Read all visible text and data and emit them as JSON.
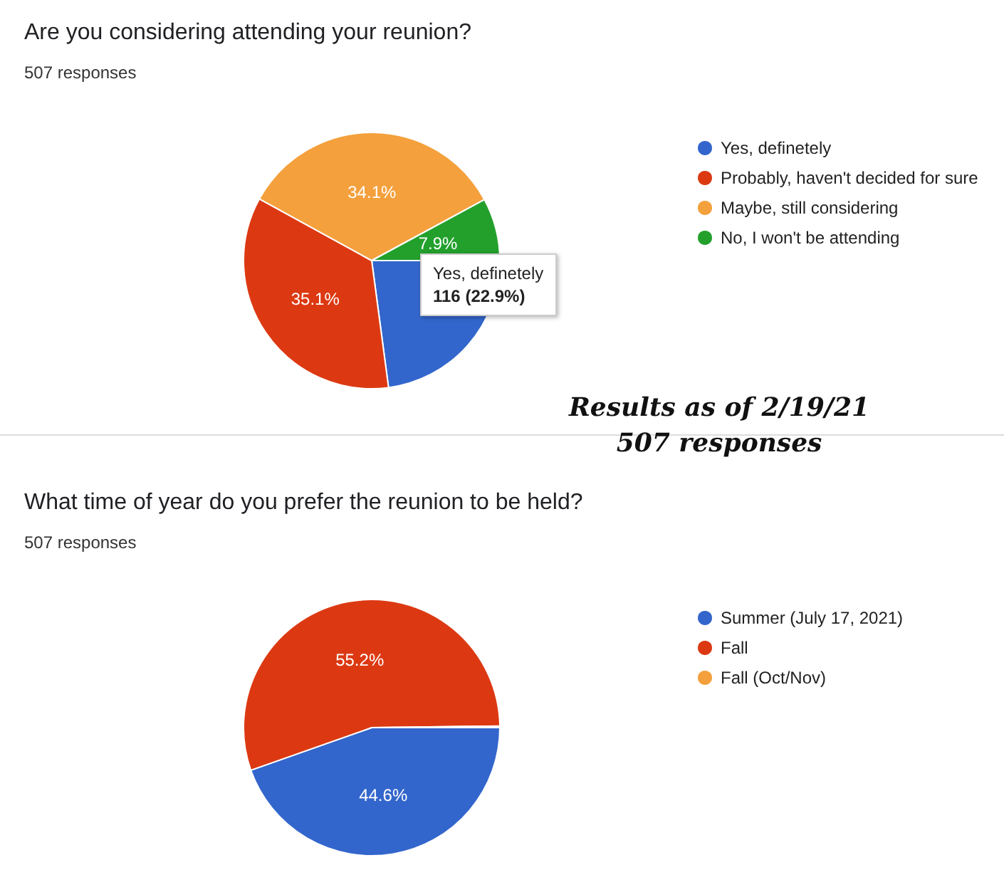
{
  "chart_data": [
    {
      "type": "pie",
      "title": "Are you considering attending your reunion?",
      "subtitle": "507 responses",
      "categories": [
        "Yes, definetely",
        "Probably, haven't decided for sure",
        "Maybe, still considering",
        "No, I won't be attending"
      ],
      "values": [
        22.9,
        35.1,
        34.1,
        7.9
      ],
      "colors": [
        "#3366cc",
        "#dc3912",
        "#f4a03c",
        "#23a02c"
      ],
      "value_labels": [
        null,
        "35.1%",
        "34.1%",
        "7.9%"
      ],
      "annotations": [
        "Yes, definetely\n116 (22.9%)",
        "Results as of 2/19/21",
        "507 responses"
      ],
      "legend": "right"
    },
    {
      "type": "pie",
      "title": "What time of year do you prefer the reunion to be held?",
      "subtitle": "507 responses",
      "categories": [
        "Summer (July 17, 2021)",
        "Fall",
        "Fall (Oct/Nov)"
      ],
      "values": [
        44.6,
        55.2,
        0.2
      ],
      "colors": [
        "#3366cc",
        "#dc3912",
        "#f4a03c"
      ],
      "value_labels": [
        "44.6%",
        "55.2%",
        null
      ],
      "legend": "right"
    }
  ]
}
